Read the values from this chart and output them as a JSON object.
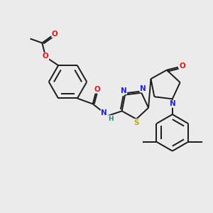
{
  "background_color": "#ebebeb",
  "bond_color": "#1a1a1a",
  "atom_colors": {
    "O": "#ee1111",
    "N": "#2222dd",
    "S": "#bbaa00",
    "H": "#228888",
    "C": "#1a1a1a"
  },
  "figsize": [
    3.0,
    3.0
  ],
  "dpi": 100
}
